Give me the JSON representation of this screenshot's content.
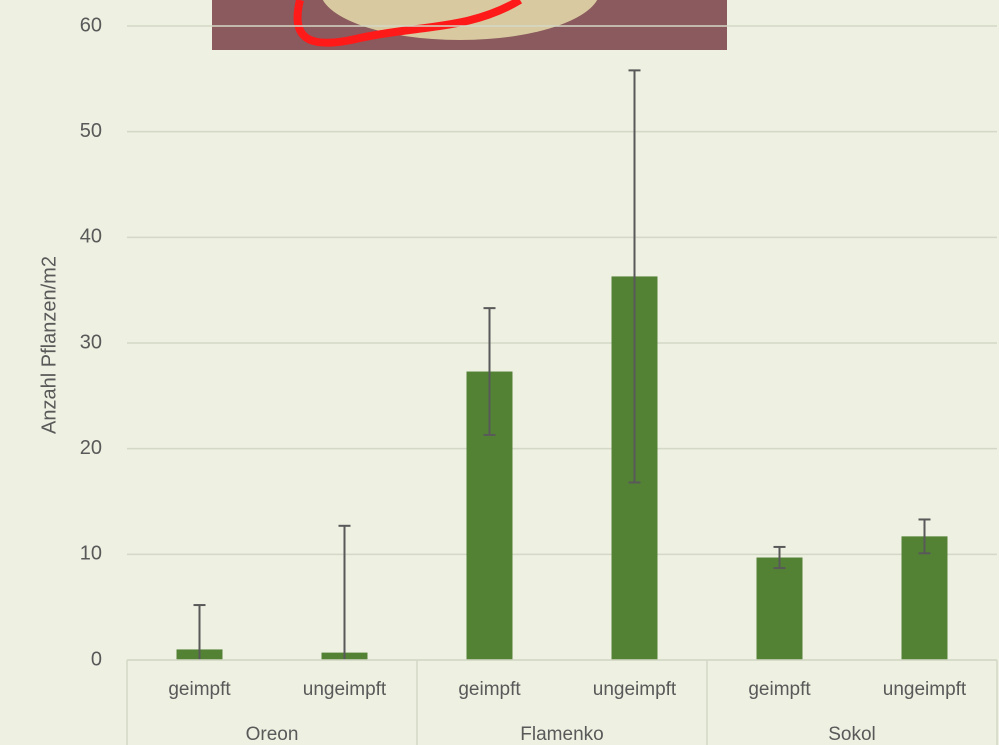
{
  "chart_data": {
    "type": "bar",
    "y_label": "Anzahl Pflanzen/m2",
    "categories": [
      "geimpft",
      "ungeimpft",
      "geimpft",
      "ungeimpft",
      "geimpft",
      "ungeimpft"
    ],
    "groups": [
      "Oreon",
      "Flamenko",
      "Sokol"
    ],
    "values": [
      1.0,
      0.7,
      27.3,
      36.3,
      9.7,
      11.7
    ],
    "errors": [
      4.2,
      12.0,
      6.0,
      19.5,
      1.0,
      1.6
    ],
    "color": "#548235",
    "ylim": [
      0,
      60
    ],
    "yticks": [
      0,
      10,
      20,
      30,
      40,
      50,
      60
    ],
    "grid": true
  }
}
